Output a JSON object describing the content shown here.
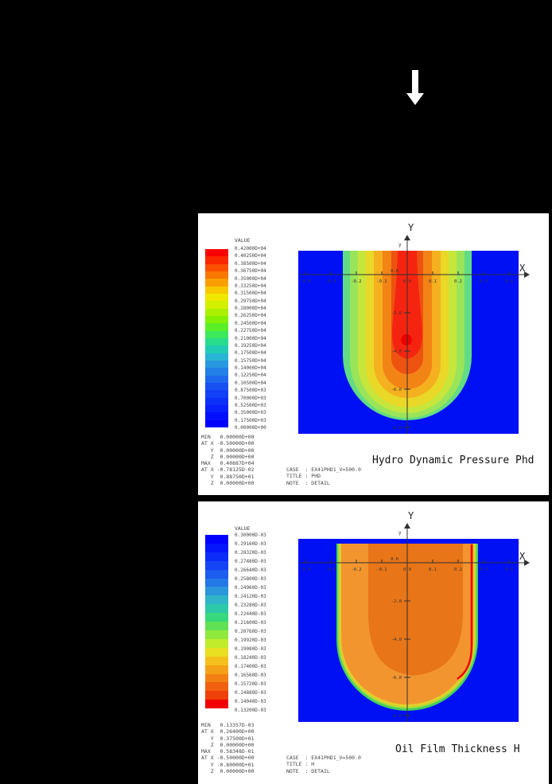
{
  "window": {
    "background": "#000000"
  },
  "arrow": {
    "shape": "down-arrow",
    "color": "#ffffff"
  },
  "panels": [
    {
      "value_label": "VALUE",
      "caption": "Hydro Dynamic Pressure Phd",
      "legend_values": [
        "0.42000D+04",
        "0.40250D+04",
        "0.38500D+04",
        "0.36750D+04",
        "0.35000D+04",
        "0.33250D+04",
        "0.31500D+04",
        "0.29750D+04",
        "0.28000D+04",
        "0.26250D+04",
        "0.24500D+04",
        "0.22750D+04",
        "0.21000D+04",
        "0.19250D+04",
        "0.17500D+04",
        "0.15750D+04",
        "0.14000D+04",
        "0.12250D+04",
        "0.10500D+04",
        "0.87500D+03",
        "0.70000D+03",
        "0.52500D+03",
        "0.35000D+03",
        "0.17500D+03",
        "0.00000D+00"
      ],
      "colorbar": [
        "#fa0000",
        "#fa2800",
        "#fa5000",
        "#f97800",
        "#f9a000",
        "#f8c800",
        "#f0e800",
        "#d2f000",
        "#aaf000",
        "#82f000",
        "#5af028",
        "#3ce85c",
        "#28dc8c",
        "#20ccb4",
        "#28b4d4",
        "#2898e0",
        "#2380e8",
        "#1e68ee",
        "#1850f2",
        "#1240f6",
        "#0d30f9",
        "#0820fb",
        "#0410fd",
        "#0000ff"
      ],
      "min_lines": [
        "MIN   0.00000D+00",
        "AT X -0.50000D+00",
        "   Y  0.00000D+00",
        "   Z  0.00000D+00"
      ],
      "max_lines": [
        "MAX   0.40887D+04",
        "AT X -0.78125D-02",
        "   Y  0.88750D+01",
        "   Z  0.00000D+00"
      ],
      "case_lines": [
        "CASE  : EX41PHD1_V=500.0",
        "TITLE : PHD",
        "NOTE  : DETAIL"
      ],
      "plot": {
        "x_axis_label": "X",
        "y_axis_label": "Y",
        "x_axis_tip": "x",
        "y_axis_tip": "y",
        "x_ticks": [
          "-0.4",
          "-0.3",
          "-0.2",
          "-0.1",
          "0.0",
          "0.1",
          "0.2",
          "0.3",
          "0.4"
        ],
        "y_origin": "0.0",
        "y_ticks": [
          "-2.0",
          "-4.0",
          "-6.0",
          "-8.0"
        ]
      },
      "contour": {
        "bg": "#0010f5",
        "band1": "#62dc82",
        "band2": "#9ae45a",
        "band3": "#c6e63c",
        "band4": "#e9d827",
        "band5": "#f4b01e",
        "band6": "#f28416",
        "band7": "#ee5210",
        "spike": "#f52410",
        "dot": "#ee0000"
      }
    },
    {
      "value_label": "VALUE",
      "caption": "Oil Film Thickness H",
      "legend_values": [
        "0.30000D-03",
        "0.29160D-03",
        "0.28320D-03",
        "0.27480D-03",
        "0.26640D-03",
        "0.25800D-03",
        "0.24960D-03",
        "0.24120D-03",
        "0.23280D-03",
        "0.22440D-03",
        "0.21600D-03",
        "0.20760D-03",
        "0.19920D-03",
        "0.19080D-03",
        "0.18240D-03",
        "0.17400D-03",
        "0.16560D-03",
        "0.15720D-03",
        "0.14880D-03",
        "0.14040D-03",
        "0.13200D-03"
      ],
      "colorbar": [
        "#0000ff",
        "#0616fc",
        "#0c2cf9",
        "#1444f4",
        "#1c5cee",
        "#2478e6",
        "#2c96da",
        "#30b4c8",
        "#2cc8a8",
        "#38d87c",
        "#60e054",
        "#90e83c",
        "#c0ec2c",
        "#e8e020",
        "#f4c01c",
        "#f4a018",
        "#f28014",
        "#f06010",
        "#ee4008",
        "#f00000"
      ],
      "min_lines": [
        "MIN   0.13357D-03",
        "AT X  0.26400D+00",
        "   Y  0.37500D+01",
        "   Z  0.00000D+00"
      ],
      "max_lines": [
        "MAX   0.58348D-01",
        "AT X -0.50000D+00",
        "   Y -0.80000D+01",
        "   Z  0.00000D+00"
      ],
      "case_lines": [
        "CASE  : EX41PHD1_V=500.0",
        "TITLE : H",
        "NOTE  : DETAIL"
      ],
      "plot": {
        "x_axis_label": "X",
        "y_axis_label": "Y",
        "x_axis_tip": "x",
        "y_axis_tip": "y",
        "x_ticks": [
          "-0.4",
          "-0.3",
          "-0.2",
          "-0.1",
          "0.0",
          "0.1",
          "0.2",
          "0.3",
          "0.4"
        ],
        "y_origin": "0.0",
        "y_ticks": [
          "-2.0",
          "-4.0",
          "-6.0",
          "-8.0"
        ]
      },
      "contour": {
        "bg": "#0010f5",
        "rim_green": "#44d05c",
        "rim_ygreen": "#aadc3e",
        "rim_yellow": "#e2d028",
        "outer_orange": "#f2952f",
        "inner_orange": "#e87518",
        "min_stripe": "#f00000"
      }
    }
  ],
  "chart_data": [
    {
      "type": "heatmap",
      "title": "Hydro Dynamic Pressure Phd",
      "xlabel": "X",
      "ylabel": "Y",
      "x_ticks": [
        -0.4,
        -0.3,
        -0.2,
        -0.1,
        0.0,
        0.1,
        0.2,
        0.3,
        0.4
      ],
      "y_ticks": [
        0.0,
        -2.0,
        -4.0,
        -6.0,
        -8.0
      ],
      "xlim": [
        -0.45,
        0.45
      ],
      "ylim": [
        -8.6,
        0.6
      ],
      "value_label": "VALUE",
      "levels": [
        4200,
        4025,
        3850,
        3675,
        3500,
        3325,
        3150,
        2975,
        2800,
        2625,
        2450,
        2275,
        2100,
        1925,
        1750,
        1575,
        1400,
        1225,
        1050,
        875,
        700,
        525,
        350,
        175,
        0
      ],
      "min": {
        "value": 0.0,
        "at_x": -0.5,
        "at_y": 0.0,
        "at_z": 0.0
      },
      "max": {
        "value": 4088.7,
        "at_x": -0.0078125,
        "at_y": 8.875,
        "at_z": 0.0
      },
      "colormap": "rainbow, red = high pressure, blue = zero",
      "legend_position": "left",
      "grid": false,
      "case": "EX41PHD1_V=500.0",
      "note": "DETAIL",
      "shape_note": "U-shaped nested contour bands centered on x=0, red peak spot near (0,-4.5)"
    },
    {
      "type": "heatmap",
      "title": "Oil Film Thickness H",
      "xlabel": "X",
      "ylabel": "Y",
      "x_ticks": [
        -0.4,
        -0.3,
        -0.2,
        -0.1,
        0.0,
        0.1,
        0.2,
        0.3,
        0.4
      ],
      "y_ticks": [
        0.0,
        -2.0,
        -4.0,
        -6.0,
        -8.0
      ],
      "xlim": [
        -0.45,
        0.45
      ],
      "ylim": [
        -8.6,
        0.6
      ],
      "value_label": "VALUE",
      "levels": [
        0.0003,
        0.0002916,
        0.0002832,
        0.0002748,
        0.0002664,
        0.000258,
        0.0002496,
        0.0002412,
        0.0002328,
        0.0002244,
        0.000216,
        0.0002076,
        0.0001992,
        0.0001908,
        0.0001824,
        0.000174,
        0.0001656,
        0.0001572,
        0.0001488,
        0.0001404,
        0.000132
      ],
      "min": {
        "value": 0.00013357,
        "at_x": 0.264,
        "at_y": 3.75,
        "at_z": 0.0
      },
      "max": {
        "value": 0.058348,
        "at_x": -0.5,
        "at_y": -8.0,
        "at_z": 0.0
      },
      "colormap": "rainbow reversed, blue = thick film, red = thin film",
      "legend_position": "left",
      "grid": false,
      "case": "EX41PHD1_V=500.0",
      "note": "DETAIL",
      "shape_note": "U-shaped orange region on blue background, thin red minimum stripe near x=0.26"
    }
  ]
}
